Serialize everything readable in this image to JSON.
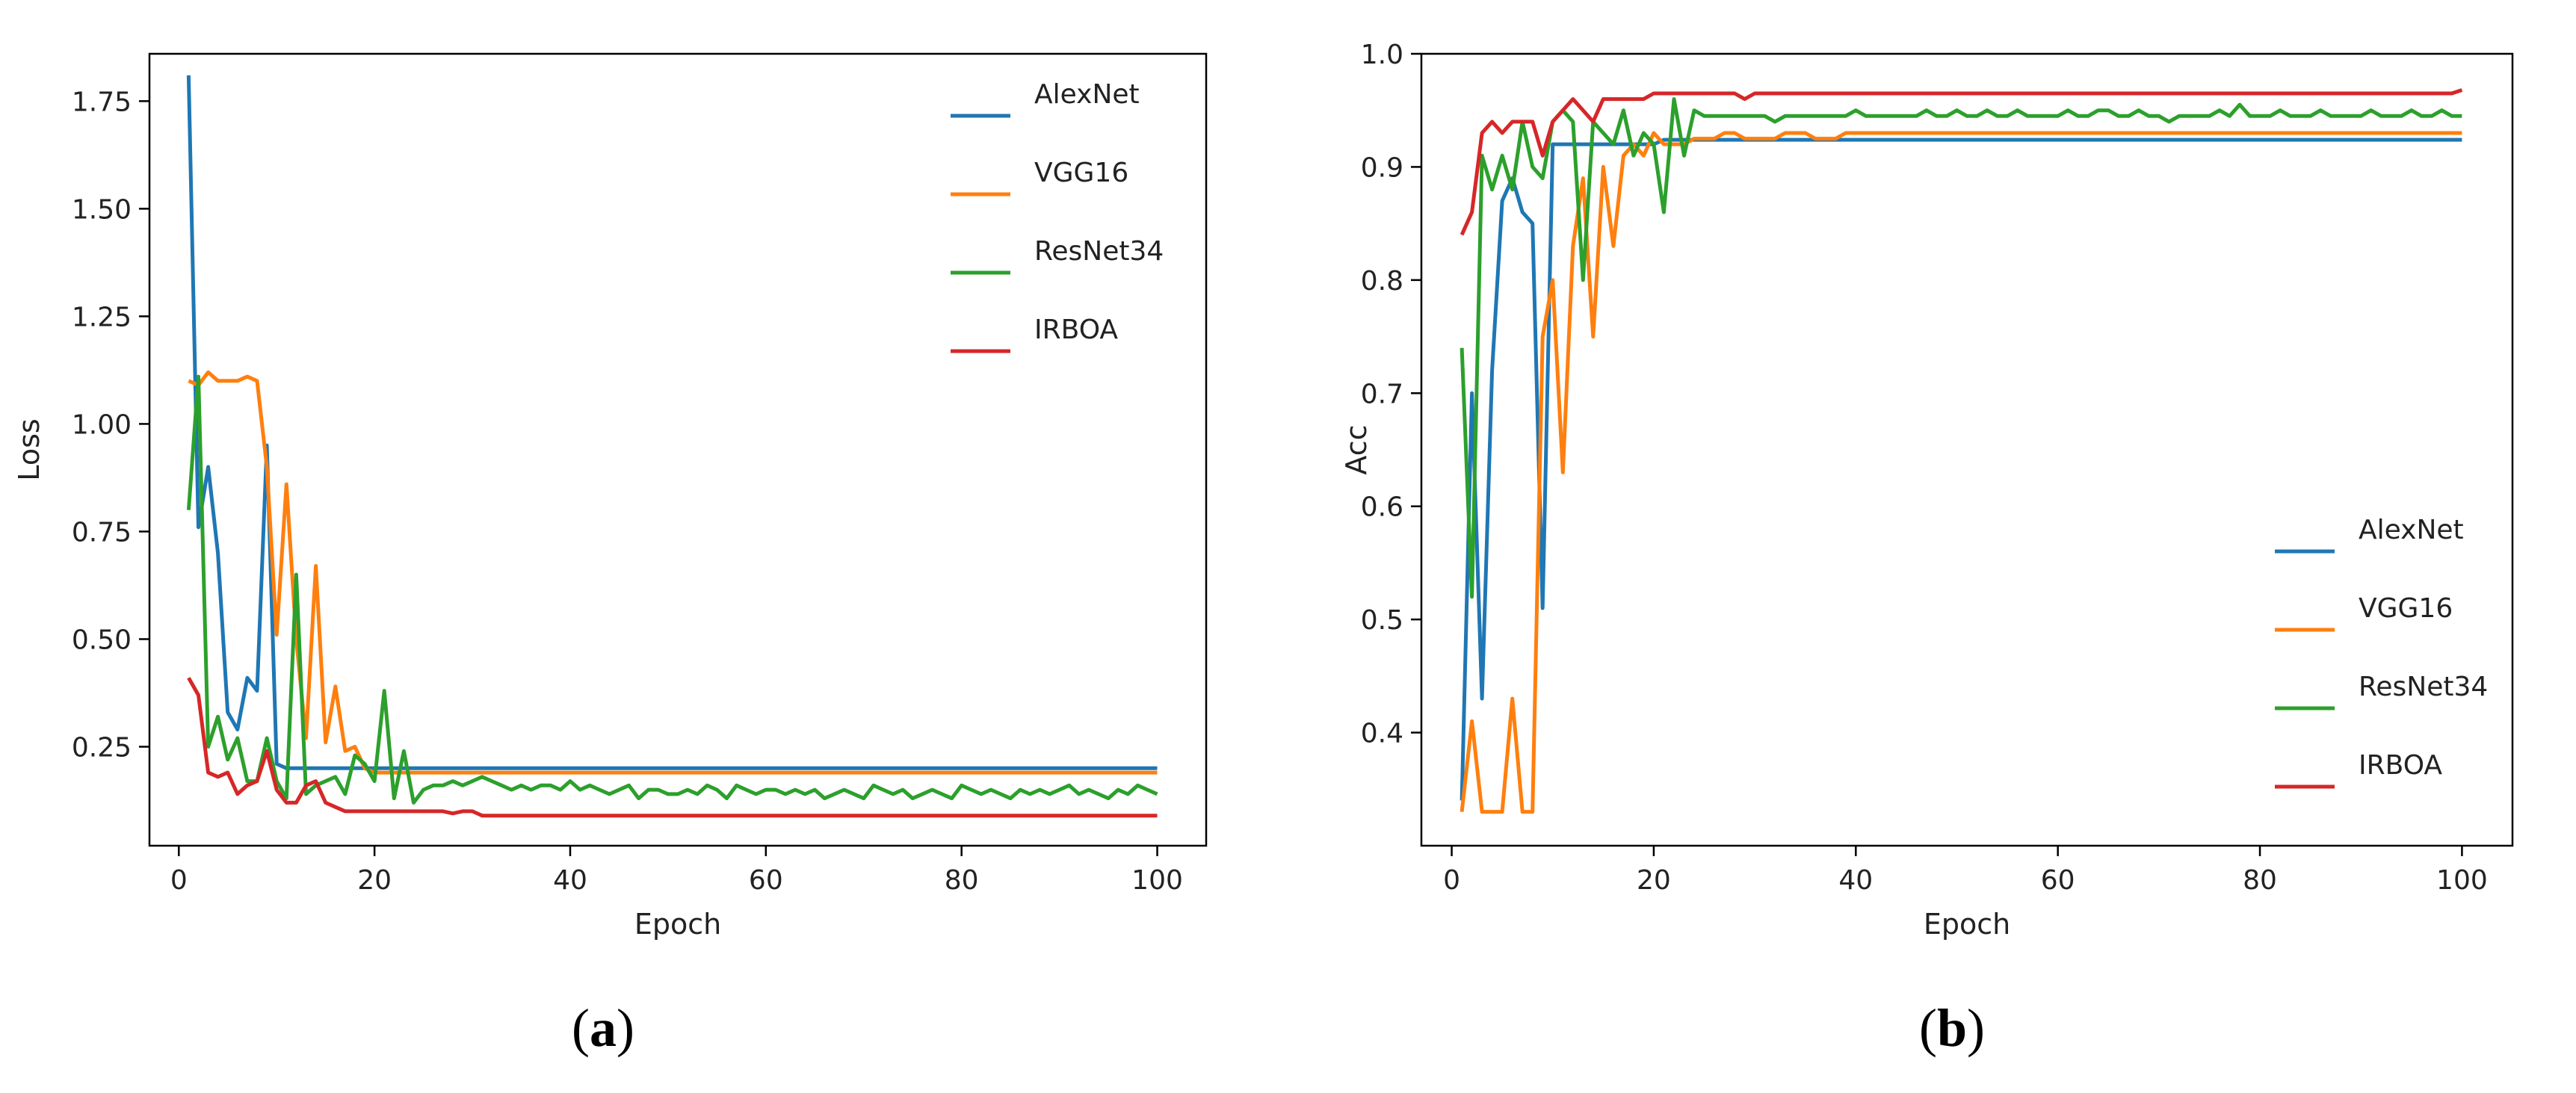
{
  "colors": {
    "AlexNet": "#1f77b4",
    "VGG16": "#ff7f0e",
    "ResNet34": "#2ca02c",
    "IRBOA": "#d62728"
  },
  "panels": {
    "a": {
      "open": "(",
      "letter": "a",
      "close": ")"
    },
    "b": {
      "open": "(",
      "letter": "b",
      "close": ")"
    }
  },
  "chart_data": [
    {
      "type": "line",
      "panel": "a",
      "title": "",
      "xlabel": "Epoch",
      "ylabel": "Loss",
      "xlim": [
        -3,
        105
      ],
      "ylim": [
        0.02,
        1.86
      ],
      "xticks": [
        0,
        20,
        40,
        60,
        80,
        100
      ],
      "xtick_labels": [
        "0",
        "20",
        "40",
        "60",
        "80",
        "100"
      ],
      "yticks": [
        0.25,
        0.5,
        0.75,
        1.0,
        1.25,
        1.5,
        1.75
      ],
      "ytick_labels": [
        "0.25",
        "0.50",
        "0.75",
        "1.00",
        "1.25",
        "1.50",
        "1.75"
      ],
      "grid": false,
      "legend_placement": "top-right",
      "x": [
        1,
        2,
        3,
        4,
        5,
        6,
        7,
        8,
        9,
        10,
        11,
        12,
        13,
        14,
        15,
        16,
        17,
        18,
        19,
        20,
        21,
        22,
        23,
        24,
        25,
        26,
        27,
        28,
        29,
        30,
        31,
        32,
        33,
        34,
        35,
        36,
        37,
        38,
        39,
        40,
        41,
        42,
        43,
        44,
        45,
        46,
        47,
        48,
        49,
        50,
        51,
        52,
        53,
        54,
        55,
        56,
        57,
        58,
        59,
        60,
        61,
        62,
        63,
        64,
        65,
        66,
        67,
        68,
        69,
        70,
        71,
        72,
        73,
        74,
        75,
        76,
        77,
        78,
        79,
        80,
        81,
        82,
        83,
        84,
        85,
        86,
        87,
        88,
        89,
        90,
        91,
        92,
        93,
        94,
        95,
        96,
        97,
        98,
        99,
        100
      ],
      "series": [
        {
          "name": "AlexNet",
          "values": [
            1.81,
            0.76,
            0.9,
            0.7,
            0.33,
            0.29,
            0.41,
            0.38,
            0.95,
            0.21,
            0.2,
            0.2,
            0.2,
            0.2,
            0.2,
            0.2,
            0.2,
            0.2,
            0.2,
            0.2,
            0.2,
            0.2,
            0.2,
            0.2,
            0.2,
            0.2,
            0.2,
            0.2,
            0.2,
            0.2,
            0.2,
            0.2,
            0.2,
            0.2,
            0.2,
            0.2,
            0.2,
            0.2,
            0.2,
            0.2,
            0.2,
            0.2,
            0.2,
            0.2,
            0.2,
            0.2,
            0.2,
            0.2,
            0.2,
            0.2,
            0.2,
            0.2,
            0.2,
            0.2,
            0.2,
            0.2,
            0.2,
            0.2,
            0.2,
            0.2,
            0.2,
            0.2,
            0.2,
            0.2,
            0.2,
            0.2,
            0.2,
            0.2,
            0.2,
            0.2,
            0.2,
            0.2,
            0.2,
            0.2,
            0.2,
            0.2,
            0.2,
            0.2,
            0.2,
            0.2,
            0.2,
            0.2,
            0.2,
            0.2,
            0.2,
            0.2,
            0.2,
            0.2,
            0.2,
            0.2,
            0.2,
            0.2,
            0.2,
            0.2,
            0.2,
            0.2,
            0.2,
            0.2,
            0.2,
            0.2
          ]
        },
        {
          "name": "VGG16",
          "values": [
            1.1,
            1.09,
            1.12,
            1.1,
            1.1,
            1.1,
            1.11,
            1.1,
            0.9,
            0.51,
            0.86,
            0.5,
            0.27,
            0.67,
            0.26,
            0.39,
            0.24,
            0.25,
            0.2,
            0.19,
            0.19,
            0.19,
            0.19,
            0.19,
            0.19,
            0.19,
            0.19,
            0.19,
            0.19,
            0.19,
            0.19,
            0.19,
            0.19,
            0.19,
            0.19,
            0.19,
            0.19,
            0.19,
            0.19,
            0.19,
            0.19,
            0.19,
            0.19,
            0.19,
            0.19,
            0.19,
            0.19,
            0.19,
            0.19,
            0.19,
            0.19,
            0.19,
            0.19,
            0.19,
            0.19,
            0.19,
            0.19,
            0.19,
            0.19,
            0.19,
            0.19,
            0.19,
            0.19,
            0.19,
            0.19,
            0.19,
            0.19,
            0.19,
            0.19,
            0.19,
            0.19,
            0.19,
            0.19,
            0.19,
            0.19,
            0.19,
            0.19,
            0.19,
            0.19,
            0.19,
            0.19,
            0.19,
            0.19,
            0.19,
            0.19,
            0.19,
            0.19,
            0.19,
            0.19,
            0.19,
            0.19,
            0.19,
            0.19,
            0.19,
            0.19,
            0.19,
            0.19,
            0.19,
            0.19,
            0.19
          ]
        },
        {
          "name": "ResNet34",
          "values": [
            0.8,
            1.11,
            0.25,
            0.32,
            0.22,
            0.27,
            0.17,
            0.17,
            0.27,
            0.17,
            0.13,
            0.65,
            0.14,
            0.16,
            0.17,
            0.18,
            0.14,
            0.23,
            0.21,
            0.17,
            0.38,
            0.13,
            0.24,
            0.12,
            0.15,
            0.16,
            0.16,
            0.17,
            0.16,
            0.17,
            0.18,
            0.17,
            0.16,
            0.15,
            0.16,
            0.15,
            0.16,
            0.16,
            0.15,
            0.17,
            0.15,
            0.16,
            0.15,
            0.14,
            0.15,
            0.16,
            0.13,
            0.15,
            0.15,
            0.14,
            0.14,
            0.15,
            0.14,
            0.16,
            0.15,
            0.13,
            0.16,
            0.15,
            0.14,
            0.15,
            0.15,
            0.14,
            0.15,
            0.14,
            0.15,
            0.13,
            0.14,
            0.15,
            0.14,
            0.13,
            0.16,
            0.15,
            0.14,
            0.15,
            0.13,
            0.14,
            0.15,
            0.14,
            0.13,
            0.16,
            0.15,
            0.14,
            0.15,
            0.14,
            0.13,
            0.15,
            0.14,
            0.15,
            0.14,
            0.15,
            0.16,
            0.14,
            0.15,
            0.14,
            0.13,
            0.15,
            0.14,
            0.16,
            0.15,
            0.14
          ]
        },
        {
          "name": "IRBOA",
          "values": [
            0.41,
            0.37,
            0.19,
            0.18,
            0.19,
            0.14,
            0.16,
            0.17,
            0.24,
            0.15,
            0.12,
            0.12,
            0.16,
            0.17,
            0.12,
            0.11,
            0.1,
            0.1,
            0.1,
            0.1,
            0.1,
            0.1,
            0.1,
            0.1,
            0.1,
            0.1,
            0.1,
            0.095,
            0.1,
            0.1,
            0.09,
            0.09,
            0.09,
            0.09,
            0.09,
            0.09,
            0.09,
            0.09,
            0.09,
            0.09,
            0.09,
            0.09,
            0.09,
            0.09,
            0.09,
            0.09,
            0.09,
            0.09,
            0.09,
            0.09,
            0.09,
            0.09,
            0.09,
            0.09,
            0.09,
            0.09,
            0.09,
            0.09,
            0.09,
            0.09,
            0.09,
            0.09,
            0.09,
            0.09,
            0.09,
            0.09,
            0.09,
            0.09,
            0.09,
            0.09,
            0.09,
            0.09,
            0.09,
            0.09,
            0.09,
            0.09,
            0.09,
            0.09,
            0.09,
            0.09,
            0.09,
            0.09,
            0.09,
            0.09,
            0.09,
            0.09,
            0.09,
            0.09,
            0.09,
            0.09,
            0.09,
            0.09,
            0.09,
            0.09,
            0.09,
            0.09,
            0.09,
            0.09,
            0.09,
            0.09
          ]
        }
      ]
    },
    {
      "type": "line",
      "panel": "b",
      "title": "",
      "xlabel": "Epoch",
      "ylabel": "Acc",
      "xlim": [
        -3,
        105
      ],
      "ylim": [
        0.3,
        1.0
      ],
      "xticks": [
        0,
        20,
        40,
        60,
        80,
        100
      ],
      "xtick_labels": [
        "0",
        "20",
        "40",
        "60",
        "80",
        "100"
      ],
      "yticks": [
        0.4,
        0.5,
        0.6,
        0.7,
        0.8,
        0.9,
        1.0
      ],
      "ytick_labels": [
        "0.4",
        "0.5",
        "0.6",
        "0.7",
        "0.8",
        "0.9",
        "1.0"
      ],
      "grid": false,
      "legend_placement": "lower-right",
      "x": [
        1,
        2,
        3,
        4,
        5,
        6,
        7,
        8,
        9,
        10,
        11,
        12,
        13,
        14,
        15,
        16,
        17,
        18,
        19,
        20,
        21,
        22,
        23,
        24,
        25,
        26,
        27,
        28,
        29,
        30,
        31,
        32,
        33,
        34,
        35,
        36,
        37,
        38,
        39,
        40,
        41,
        42,
        43,
        44,
        45,
        46,
        47,
        48,
        49,
        50,
        51,
        52,
        53,
        54,
        55,
        56,
        57,
        58,
        59,
        60,
        61,
        62,
        63,
        64,
        65,
        66,
        67,
        68,
        69,
        70,
        71,
        72,
        73,
        74,
        75,
        76,
        77,
        78,
        79,
        80,
        81,
        82,
        83,
        84,
        85,
        86,
        87,
        88,
        89,
        90,
        91,
        92,
        93,
        94,
        95,
        96,
        97,
        98,
        99,
        100
      ],
      "series": [
        {
          "name": "AlexNet",
          "values": [
            0.34,
            0.7,
            0.43,
            0.72,
            0.87,
            0.89,
            0.86,
            0.85,
            0.51,
            0.92,
            0.92,
            0.92,
            0.92,
            0.92,
            0.92,
            0.92,
            0.92,
            0.92,
            0.92,
            0.92,
            0.924,
            0.924,
            0.924,
            0.924,
            0.924,
            0.924,
            0.924,
            0.924,
            0.924,
            0.924,
            0.924,
            0.924,
            0.924,
            0.924,
            0.924,
            0.924,
            0.924,
            0.924,
            0.924,
            0.924,
            0.924,
            0.924,
            0.924,
            0.924,
            0.924,
            0.924,
            0.924,
            0.924,
            0.924,
            0.924,
            0.924,
            0.924,
            0.924,
            0.924,
            0.924,
            0.924,
            0.924,
            0.924,
            0.924,
            0.924,
            0.924,
            0.924,
            0.924,
            0.924,
            0.924,
            0.924,
            0.924,
            0.924,
            0.924,
            0.924,
            0.924,
            0.924,
            0.924,
            0.924,
            0.924,
            0.924,
            0.924,
            0.924,
            0.924,
            0.924,
            0.924,
            0.924,
            0.924,
            0.924,
            0.924,
            0.924,
            0.924,
            0.924,
            0.924,
            0.924,
            0.924,
            0.924,
            0.924,
            0.924,
            0.924,
            0.924,
            0.924,
            0.924,
            0.924,
            0.924
          ]
        },
        {
          "name": "VGG16",
          "values": [
            0.33,
            0.41,
            0.33,
            0.33,
            0.33,
            0.43,
            0.33,
            0.33,
            0.75,
            0.8,
            0.63,
            0.83,
            0.89,
            0.75,
            0.9,
            0.83,
            0.91,
            0.92,
            0.91,
            0.93,
            0.92,
            0.92,
            0.92,
            0.925,
            0.925,
            0.925,
            0.93,
            0.93,
            0.925,
            0.925,
            0.925,
            0.925,
            0.93,
            0.93,
            0.93,
            0.925,
            0.925,
            0.925,
            0.93,
            0.93,
            0.93,
            0.93,
            0.93,
            0.93,
            0.93,
            0.93,
            0.93,
            0.93,
            0.93,
            0.93,
            0.93,
            0.93,
            0.93,
            0.93,
            0.93,
            0.93,
            0.93,
            0.93,
            0.93,
            0.93,
            0.93,
            0.93,
            0.93,
            0.93,
            0.93,
            0.93,
            0.93,
            0.93,
            0.93,
            0.93,
            0.93,
            0.93,
            0.93,
            0.93,
            0.93,
            0.93,
            0.93,
            0.93,
            0.93,
            0.93,
            0.93,
            0.93,
            0.93,
            0.93,
            0.93,
            0.93,
            0.93,
            0.93,
            0.93,
            0.93,
            0.93,
            0.93,
            0.93,
            0.93,
            0.93,
            0.93,
            0.93,
            0.93,
            0.93,
            0.93
          ]
        },
        {
          "name": "ResNet34",
          "values": [
            0.74,
            0.52,
            0.91,
            0.88,
            0.91,
            0.88,
            0.94,
            0.9,
            0.89,
            0.94,
            0.95,
            0.94,
            0.8,
            0.94,
            0.93,
            0.92,
            0.95,
            0.91,
            0.93,
            0.92,
            0.86,
            0.96,
            0.91,
            0.95,
            0.945,
            0.945,
            0.945,
            0.945,
            0.945,
            0.945,
            0.945,
            0.94,
            0.945,
            0.945,
            0.945,
            0.945,
            0.945,
            0.945,
            0.945,
            0.95,
            0.945,
            0.945,
            0.945,
            0.945,
            0.945,
            0.945,
            0.95,
            0.945,
            0.945,
            0.95,
            0.945,
            0.945,
            0.95,
            0.945,
            0.945,
            0.95,
            0.945,
            0.945,
            0.945,
            0.945,
            0.95,
            0.945,
            0.945,
            0.95,
            0.95,
            0.945,
            0.945,
            0.95,
            0.945,
            0.945,
            0.94,
            0.945,
            0.945,
            0.945,
            0.945,
            0.95,
            0.945,
            0.955,
            0.945,
            0.945,
            0.945,
            0.95,
            0.945,
            0.945,
            0.945,
            0.95,
            0.945,
            0.945,
            0.945,
            0.945,
            0.95,
            0.945,
            0.945,
            0.945,
            0.95,
            0.945,
            0.945,
            0.95,
            0.945,
            0.945
          ]
        },
        {
          "name": "IRBOA",
          "values": [
            0.84,
            0.86,
            0.93,
            0.94,
            0.93,
            0.94,
            0.94,
            0.94,
            0.91,
            0.94,
            0.95,
            0.96,
            0.95,
            0.94,
            0.96,
            0.96,
            0.96,
            0.96,
            0.96,
            0.965,
            0.965,
            0.965,
            0.965,
            0.965,
            0.965,
            0.965,
            0.965,
            0.965,
            0.96,
            0.965,
            0.965,
            0.965,
            0.965,
            0.965,
            0.965,
            0.965,
            0.965,
            0.965,
            0.965,
            0.965,
            0.965,
            0.965,
            0.965,
            0.965,
            0.965,
            0.965,
            0.965,
            0.965,
            0.965,
            0.965,
            0.965,
            0.965,
            0.965,
            0.965,
            0.965,
            0.965,
            0.965,
            0.965,
            0.965,
            0.965,
            0.965,
            0.965,
            0.965,
            0.965,
            0.965,
            0.965,
            0.965,
            0.965,
            0.965,
            0.965,
            0.965,
            0.965,
            0.965,
            0.965,
            0.965,
            0.965,
            0.965,
            0.965,
            0.965,
            0.965,
            0.965,
            0.965,
            0.965,
            0.965,
            0.965,
            0.965,
            0.965,
            0.965,
            0.965,
            0.965,
            0.965,
            0.965,
            0.965,
            0.965,
            0.965,
            0.965,
            0.965,
            0.965,
            0.965,
            0.968
          ]
        }
      ]
    }
  ]
}
